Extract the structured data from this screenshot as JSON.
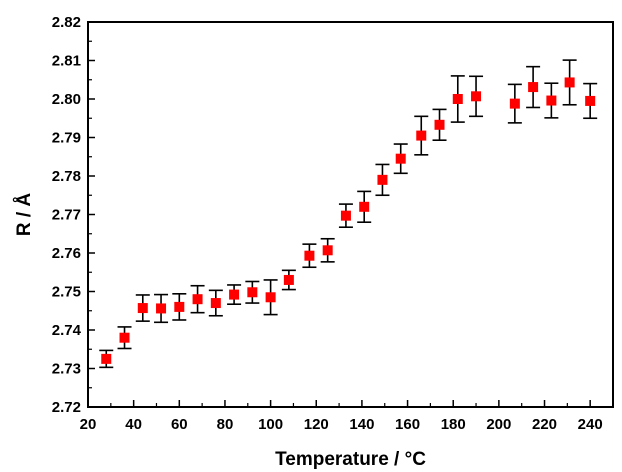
{
  "chart_data": {
    "type": "scatter",
    "title": "",
    "xlabel": "Temperature / °C",
    "ylabel": "R / Å",
    "xlim": [
      20,
      250
    ],
    "ylim": [
      2.72,
      2.82
    ],
    "xticks": [
      20,
      40,
      60,
      80,
      100,
      120,
      140,
      160,
      180,
      200,
      220,
      240
    ],
    "yticks": [
      2.72,
      2.73,
      2.74,
      2.75,
      2.76,
      2.77,
      2.78,
      2.79,
      2.8,
      2.81,
      2.82
    ],
    "xtick_labels": [
      "20",
      "40",
      "60",
      "80",
      "100",
      "120",
      "140",
      "160",
      "180",
      "200",
      "220",
      "240"
    ],
    "ytick_labels": [
      "2.72",
      "2.73",
      "2.74",
      "2.75",
      "2.76",
      "2.77",
      "2.78",
      "2.79",
      "2.80",
      "2.81",
      "2.82"
    ],
    "grid": false,
    "marker_color": "#ff0000",
    "errorbar_color": "#000000",
    "series": [
      {
        "x": [
          28,
          36,
          44,
          52,
          60,
          68,
          76,
          84,
          92,
          100,
          108,
          117,
          125,
          133,
          141,
          149,
          157,
          166,
          174,
          182,
          190,
          207,
          215,
          223,
          231,
          240
        ],
        "y": [
          2.7325,
          2.738,
          2.7457,
          2.7456,
          2.746,
          2.748,
          2.747,
          2.7492,
          2.7498,
          2.7485,
          2.753,
          2.7593,
          2.7607,
          2.7697,
          2.772,
          2.779,
          2.7845,
          2.7905,
          2.7933,
          2.8,
          2.8007,
          2.7988,
          2.8031,
          2.7996,
          2.8043,
          2.7995
        ],
        "yerr": [
          0.0022,
          0.0028,
          0.0034,
          0.0036,
          0.0034,
          0.0035,
          0.0033,
          0.0025,
          0.0028,
          0.0045,
          0.0025,
          0.003,
          0.003,
          0.003,
          0.004,
          0.004,
          0.0038,
          0.005,
          0.004,
          0.006,
          0.0052,
          0.005,
          0.0053,
          0.0045,
          0.0058,
          0.0045
        ]
      }
    ]
  }
}
